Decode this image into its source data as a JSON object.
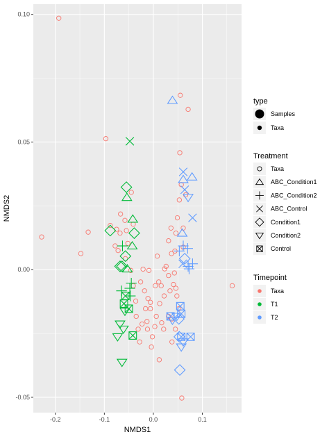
{
  "chart_data": {
    "type": "scatter",
    "xlabel": "NMDS1",
    "ylabel": "NMDS2",
    "xlim": [
      -0.245,
      0.18
    ],
    "ylim": [
      -0.056,
      0.104
    ],
    "x_ticks": [
      -0.2,
      -0.1,
      0.0,
      0.1
    ],
    "x_tick_labels": [
      "-0.2",
      "-0.1",
      "0.0",
      "0.1"
    ],
    "y_ticks": [
      -0.05,
      0.0,
      0.05,
      0.1
    ],
    "y_tick_labels": [
      "-0.05",
      "0.00",
      "0.05",
      "0.10"
    ],
    "grid": true,
    "legend_position": "right",
    "colors": {
      "panel_bg": "#ebebeb",
      "grid": "#ffffff",
      "Taxa": "#F8766D",
      "T1": "#00BA38",
      "T2": "#619CFF"
    },
    "legend": {
      "type": {
        "title": "type",
        "items": [
          {
            "label": "Samples",
            "size": "large"
          },
          {
            "label": "Taxa",
            "size": "small"
          }
        ]
      },
      "treatment": {
        "title": "Treatment",
        "items": [
          {
            "label": "Taxa",
            "shape": "circle"
          },
          {
            "label": "ABC_Condition1",
            "shape": "triangle-up"
          },
          {
            "label": "ABC_Condition2",
            "shape": "plus"
          },
          {
            "label": "ABC_Control",
            "shape": "cross"
          },
          {
            "label": "Condition1",
            "shape": "diamond"
          },
          {
            "label": "Condition2",
            "shape": "triangle-down"
          },
          {
            "label": "Control",
            "shape": "square-cross"
          }
        ]
      },
      "timepoint": {
        "title": "Timepoint",
        "items": [
          {
            "label": "Taxa",
            "color": "#F8766D"
          },
          {
            "label": "T1",
            "color": "#00BA38"
          },
          {
            "label": "T2",
            "color": "#619CFF"
          }
        ]
      }
    },
    "series": [
      {
        "timepoint": "Taxa",
        "type": "Taxa",
        "treatment": "Taxa",
        "points": [
          [
            -0.193,
            0.0985
          ],
          [
            -0.228,
            0.0128
          ],
          [
            -0.133,
            0.0147
          ],
          [
            -0.148,
            0.0063
          ],
          [
            -0.097,
            0.0513
          ],
          [
            -0.088,
            0.0173
          ],
          [
            -0.075,
            0.0158
          ],
          [
            -0.072,
            0.0075
          ],
          [
            -0.067,
            0.0218
          ],
          [
            -0.055,
            0.0153
          ],
          [
            -0.052,
            0.0103
          ],
          [
            -0.041,
            0.0178
          ],
          [
            -0.045,
            0.0303
          ],
          [
            -0.046,
            -0.0003
          ],
          [
            -0.041,
            -0.0063
          ],
          [
            -0.036,
            -0.0123
          ],
          [
            -0.035,
            -0.0183
          ],
          [
            -0.031,
            -0.0233
          ],
          [
            -0.026,
            -0.0048
          ],
          [
            -0.021,
            0.0002
          ],
          [
            -0.018,
            -0.0083
          ],
          [
            -0.016,
            -0.0153
          ],
          [
            -0.013,
            -0.0203
          ],
          [
            -0.009,
            -0.0003
          ],
          [
            -0.006,
            -0.0128
          ],
          [
            -0.002,
            -0.0263
          ],
          [
            0.003,
            -0.0223
          ],
          [
            0.004,
            -0.0063
          ],
          [
            -0.004,
            -0.0303
          ],
          [
            0.011,
            -0.0048
          ],
          [
            0.013,
            -0.0133
          ],
          [
            0.017,
            -0.0208
          ],
          [
            0.021,
            -0.0233
          ],
          [
            0.026,
            0.0013
          ],
          [
            0.031,
            -0.0023
          ],
          [
            0.034,
            -0.0083
          ],
          [
            0.038,
            -0.0193
          ],
          [
            0.041,
            -0.0058
          ],
          [
            0.044,
            0.0073
          ],
          [
            0.046,
            0.0143
          ],
          [
            0.049,
            0.0203
          ],
          [
            0.053,
            0.0273
          ],
          [
            0.057,
            0.0333
          ],
          [
            0.054,
            0.0458
          ],
          [
            0.071,
            0.0628
          ],
          [
            0.055,
            0.0683
          ],
          [
            0.036,
            0.0163
          ],
          [
            0.031,
            0.0113
          ],
          [
            0.037,
            0.0063
          ],
          [
            0.043,
            -0.0013
          ],
          [
            0.048,
            -0.0103
          ],
          [
            0.052,
            -0.0153
          ],
          [
            0.045,
            -0.0233
          ],
          [
            0.038,
            -0.0283
          ],
          [
            0.012,
            -0.0353
          ],
          [
            -0.006,
            -0.0153
          ],
          [
            0.022,
            -0.0103
          ],
          [
            0.023,
            0.0003
          ],
          [
            0.031,
            -0.0183
          ],
          [
            -0.012,
            -0.0233
          ],
          [
            -0.028,
            -0.0283
          ],
          [
            -0.023,
            -0.0213
          ],
          [
            0.061,
            0.0088
          ],
          [
            0.061,
            0.0163
          ],
          [
            0.066,
            0.0293
          ],
          [
            0.046,
            -0.0073
          ],
          [
            0.058,
            -0.0503
          ],
          [
            0.161,
            -0.0063
          ],
          [
            -0.078,
            0.0093
          ],
          [
            -0.068,
            0.0143
          ],
          [
            -0.058,
            0.0193
          ],
          [
            -0.057,
            0.0043
          ],
          [
            -0.011,
            -0.0113
          ],
          [
            0.006,
            -0.0183
          ],
          [
            0.016,
            -0.0063
          ],
          [
            0.008,
            0.0053
          ]
        ]
      },
      {
        "timepoint": "T1",
        "type": "Samples",
        "points": [
          {
            "x": -0.048,
            "y": 0.0503,
            "shape": "cross"
          },
          {
            "x": -0.055,
            "y": 0.0323,
            "shape": "diamond"
          },
          {
            "x": -0.054,
            "y": 0.0283,
            "shape": "triangle-up"
          },
          {
            "x": -0.042,
            "y": 0.0198,
            "shape": "triangle-up"
          },
          {
            "x": -0.039,
            "y": 0.0143,
            "shape": "diamond"
          },
          {
            "x": -0.088,
            "y": 0.0153,
            "shape": "diamond"
          },
          {
            "x": -0.043,
            "y": 0.0093,
            "shape": "triangle-up"
          },
          {
            "x": -0.063,
            "y": 0.0093,
            "shape": "plus"
          },
          {
            "x": -0.057,
            "y": 0.0053,
            "shape": "diamond"
          },
          {
            "x": -0.068,
            "y": 0.0013,
            "shape": "diamond"
          },
          {
            "x": -0.064,
            "y": 0.0013,
            "shape": "diamond"
          },
          {
            "x": -0.053,
            "y": 0.0003,
            "shape": "triangle-up"
          },
          {
            "x": -0.045,
            "y": -0.0053,
            "shape": "plus"
          },
          {
            "x": -0.048,
            "y": -0.0073,
            "shape": "plus"
          },
          {
            "x": -0.065,
            "y": -0.0083,
            "shape": "plus"
          },
          {
            "x": -0.047,
            "y": -0.0103,
            "shape": "plus"
          },
          {
            "x": -0.057,
            "y": -0.0103,
            "shape": "square-cross"
          },
          {
            "x": -0.06,
            "y": -0.0133,
            "shape": "square-cross"
          },
          {
            "x": -0.05,
            "y": -0.0153,
            "shape": "square-cross"
          },
          {
            "x": -0.058,
            "y": -0.0163,
            "shape": "triangle-down"
          },
          {
            "x": -0.068,
            "y": -0.0213,
            "shape": "triangle-down"
          },
          {
            "x": -0.061,
            "y": -0.0233,
            "shape": "triangle-down"
          },
          {
            "x": -0.073,
            "y": -0.0263,
            "shape": "triangle-down"
          },
          {
            "x": -0.042,
            "y": -0.0258,
            "shape": "square-cross"
          },
          {
            "x": -0.064,
            "y": -0.0363,
            "shape": "triangle-down"
          }
        ]
      },
      {
        "timepoint": "T2",
        "type": "Samples",
        "points": [
          {
            "x": 0.039,
            "y": 0.0663,
            "shape": "triangle-up"
          },
          {
            "x": 0.061,
            "y": 0.0383,
            "shape": "cross"
          },
          {
            "x": 0.079,
            "y": 0.0363,
            "shape": "triangle-up"
          },
          {
            "x": 0.061,
            "y": 0.0353,
            "shape": "triangle-up"
          },
          {
            "x": 0.064,
            "y": 0.0313,
            "shape": "cross"
          },
          {
            "x": 0.071,
            "y": 0.0283,
            "shape": "triangle-down"
          },
          {
            "x": 0.08,
            "y": 0.0203,
            "shape": "cross"
          },
          {
            "x": 0.059,
            "y": 0.0143,
            "shape": "triangle-up"
          },
          {
            "x": 0.061,
            "y": 0.0093,
            "shape": "plus"
          },
          {
            "x": 0.07,
            "y": 0.0083,
            "shape": "plus"
          },
          {
            "x": 0.053,
            "y": 0.0073,
            "shape": "plus"
          },
          {
            "x": 0.064,
            "y": 0.0043,
            "shape": "diamond"
          },
          {
            "x": 0.06,
            "y": 0.0023,
            "shape": "cross"
          },
          {
            "x": 0.08,
            "y": 0.0023,
            "shape": "plus"
          },
          {
            "x": 0.071,
            "y": 0.0013,
            "shape": "plus"
          },
          {
            "x": 0.073,
            "y": 0.0003,
            "shape": "plus"
          },
          {
            "x": 0.055,
            "y": -0.0143,
            "shape": "square-cross"
          },
          {
            "x": 0.057,
            "y": -0.0173,
            "shape": "square-cross"
          },
          {
            "x": 0.035,
            "y": -0.0183,
            "shape": "square-cross"
          },
          {
            "x": 0.048,
            "y": -0.0183,
            "shape": "triangle-down"
          },
          {
            "x": 0.039,
            "y": -0.0198,
            "shape": "triangle-down"
          },
          {
            "x": 0.052,
            "y": -0.0193,
            "shape": "diamond"
          },
          {
            "x": 0.057,
            "y": -0.0263,
            "shape": "square-cross"
          },
          {
            "x": 0.076,
            "y": -0.0263,
            "shape": "square-cross"
          },
          {
            "x": 0.053,
            "y": -0.0263,
            "shape": "diamond"
          },
          {
            "x": 0.061,
            "y": -0.0283,
            "shape": "triangle-down"
          },
          {
            "x": 0.057,
            "y": -0.0303,
            "shape": "triangle-down"
          },
          {
            "x": 0.054,
            "y": -0.0393,
            "shape": "diamond"
          }
        ]
      }
    ]
  }
}
